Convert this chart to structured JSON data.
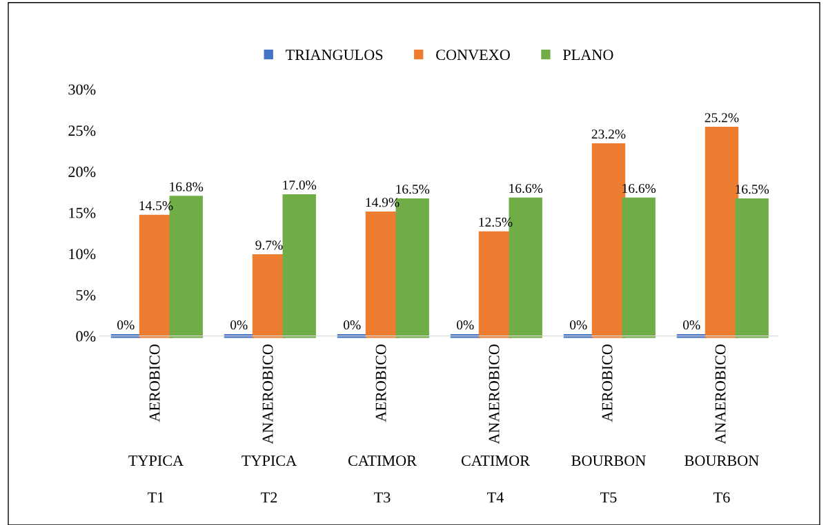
{
  "chart_data": {
    "type": "bar",
    "categories": [
      "AEROBICO\nTYPICA\nT1",
      "ANAEROBICO\nTYPICA\nT2",
      "AEROBICO\nCATIMOR\nT3",
      "ANAEROBICO\nCATIMOR\nT4",
      "AEROBICO\nBOURBON\nT5",
      "ANAEROBICO\nBOURBON\nT6"
    ],
    "series": [
      {
        "name": "TRIANGULOS",
        "color": "#4472c4",
        "values": [
          0,
          0,
          0,
          0,
          0,
          0
        ],
        "value_labels": [
          "0%",
          "0%",
          "0%",
          "0%",
          "0%",
          "0%"
        ]
      },
      {
        "name": "CONVEXO",
        "color": "#ed7d31",
        "values": [
          14.5,
          9.7,
          14.9,
          12.5,
          23.2,
          25.2
        ],
        "value_labels": [
          "14.5%",
          "9.7%",
          "14.9%",
          "12.5%",
          "23.2%",
          "25.2%"
        ]
      },
      {
        "name": "PLANO",
        "color": "#70ad47",
        "values": [
          16.8,
          17.0,
          16.5,
          16.6,
          16.6,
          16.5
        ],
        "value_labels": [
          "16.8%",
          "17.0%",
          "16.5%",
          "16.6%",
          "16.6%",
          "16.5%"
        ]
      }
    ],
    "ylim": [
      0,
      30
    ],
    "yticks": [
      {
        "value": 0,
        "label": "0%"
      },
      {
        "value": 5,
        "label": "5%"
      },
      {
        "value": 10,
        "label": "10%"
      },
      {
        "value": 15,
        "label": "15%"
      },
      {
        "value": 20,
        "label": "20%"
      },
      {
        "value": 25,
        "label": "25%"
      },
      {
        "value": 30,
        "label": "30%"
      }
    ],
    "legend": "top",
    "grid": false
  }
}
